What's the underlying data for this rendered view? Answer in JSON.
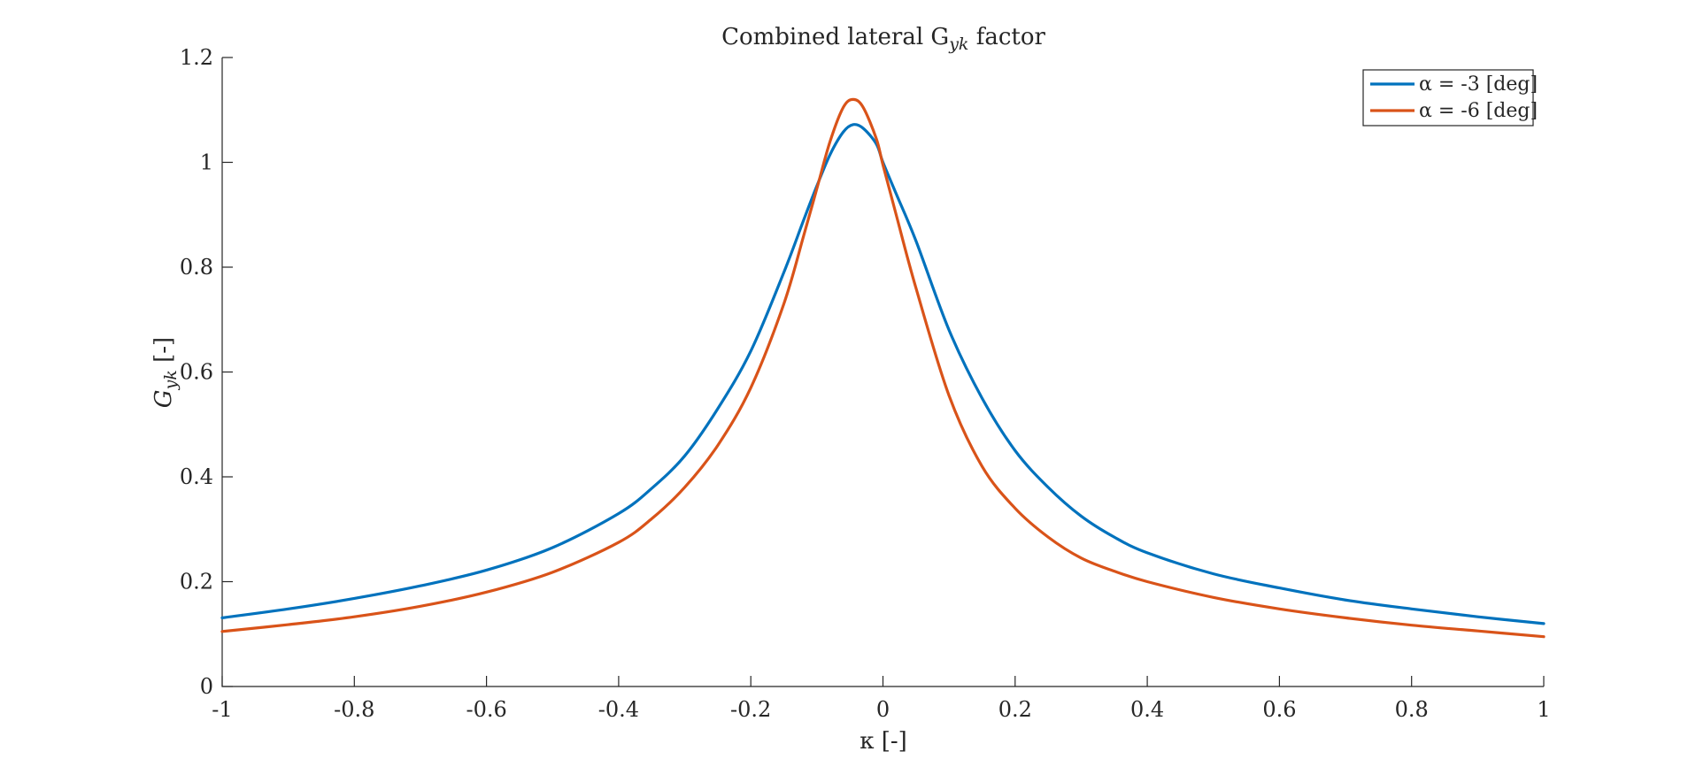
{
  "chart_data": {
    "type": "line",
    "title": "Combined lateral G",
    "title_subscript": "yk",
    "title_suffix": " factor",
    "xlabel": "κ [-]",
    "ylabel": "G",
    "ylabel_subscript": "yk",
    "ylabel_suffix": " [-]",
    "xlim": [
      -1,
      1
    ],
    "ylim": [
      0,
      1.2
    ],
    "xticks": [
      -1,
      -0.8,
      -0.6,
      -0.4,
      -0.2,
      0,
      0.2,
      0.4,
      0.6,
      0.8,
      1
    ],
    "xtick_labels": [
      "-1",
      "-0.8",
      "-0.6",
      "-0.4",
      "-0.2",
      "0",
      "0.2",
      "0.4",
      "0.6",
      "0.8",
      "1"
    ],
    "yticks": [
      0,
      0.2,
      0.4,
      0.6,
      0.8,
      1,
      1.2
    ],
    "ytick_labels": [
      "0",
      "0.2",
      "0.4",
      "0.6",
      "0.8",
      "1",
      "1.2"
    ],
    "grid": false,
    "legend_placement": "top-right",
    "x": [
      -1,
      -0.9,
      -0.8,
      -0.7,
      -0.6,
      -0.5,
      -0.4,
      -0.35,
      -0.3,
      -0.25,
      -0.2,
      -0.15,
      -0.12,
      -0.1,
      -0.08,
      -0.06,
      -0.045,
      -0.03,
      -0.01,
      0,
      0.02,
      0.05,
      0.1,
      0.15,
      0.2,
      0.25,
      0.3,
      0.35,
      0.4,
      0.5,
      0.6,
      0.7,
      0.8,
      0.9,
      1
    ],
    "series": [
      {
        "name": "α = -3 [deg]",
        "color": "#0072BD",
        "values": [
          0.131,
          0.148,
          0.168,
          0.192,
          0.222,
          0.265,
          0.33,
          0.378,
          0.44,
          0.53,
          0.64,
          0.79,
          0.89,
          0.955,
          1.015,
          1.058,
          1.072,
          1.065,
          1.035,
          1.0,
          0.94,
          0.85,
          0.68,
          0.55,
          0.45,
          0.38,
          0.325,
          0.285,
          0.255,
          0.215,
          0.188,
          0.165,
          0.148,
          0.133,
          0.12
        ]
      },
      {
        "name": "α = -6 [deg]",
        "color": "#D95319",
        "values": [
          0.105,
          0.118,
          0.133,
          0.153,
          0.18,
          0.218,
          0.275,
          0.32,
          0.38,
          0.46,
          0.57,
          0.73,
          0.86,
          0.95,
          1.04,
          1.105,
          1.12,
          1.105,
          1.045,
          0.995,
          0.9,
          0.76,
          0.555,
          0.42,
          0.34,
          0.285,
          0.245,
          0.22,
          0.2,
          0.17,
          0.148,
          0.131,
          0.117,
          0.106,
          0.095
        ]
      }
    ]
  }
}
